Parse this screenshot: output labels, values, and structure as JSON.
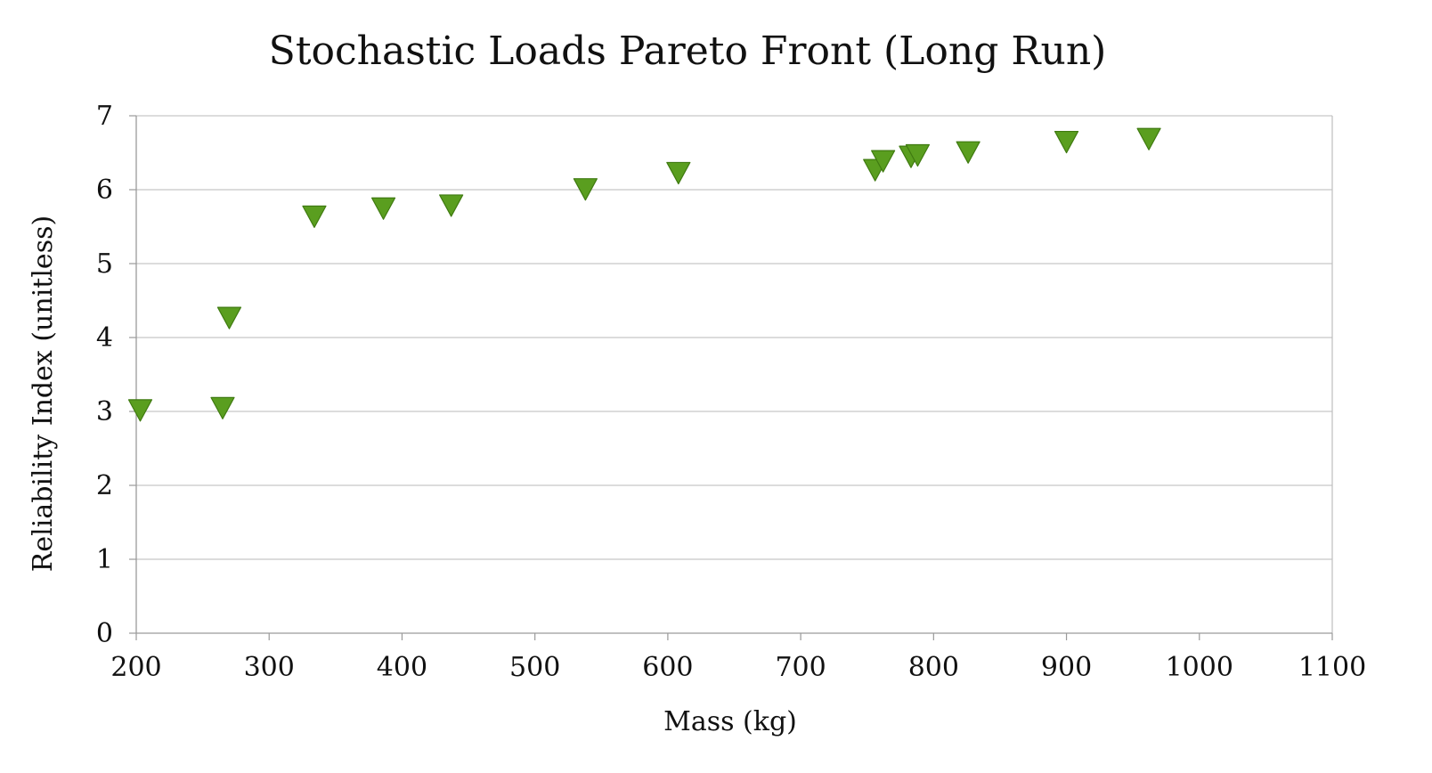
{
  "chart_data": {
    "type": "scatter",
    "title": "Stochastic Loads Pareto Front (Long Run)",
    "xlabel": "Mass (kg)",
    "ylabel": "Reliability Index (unitless)",
    "xlim": [
      200,
      1100
    ],
    "ylim": [
      0,
      7
    ],
    "x_ticks": [
      200,
      300,
      400,
      500,
      600,
      700,
      800,
      900,
      1000,
      1100
    ],
    "y_ticks": [
      0,
      1,
      2,
      3,
      4,
      5,
      6,
      7
    ],
    "grid": "horizontal",
    "legend": "none",
    "marker": "triangle-down",
    "series": [
      {
        "color": "#5a9e1f",
        "points": [
          {
            "x": 203,
            "y": 3.05
          },
          {
            "x": 265,
            "y": 3.08
          },
          {
            "x": 270,
            "y": 4.3
          },
          {
            "x": 334,
            "y": 5.67
          },
          {
            "x": 386,
            "y": 5.78
          },
          {
            "x": 437,
            "y": 5.82
          },
          {
            "x": 538,
            "y": 6.04
          },
          {
            "x": 608,
            "y": 6.26
          },
          {
            "x": 756,
            "y": 6.3
          },
          {
            "x": 762,
            "y": 6.42
          },
          {
            "x": 783,
            "y": 6.48
          },
          {
            "x": 788,
            "y": 6.5
          },
          {
            "x": 826,
            "y": 6.54
          },
          {
            "x": 900,
            "y": 6.68
          },
          {
            "x": 962,
            "y": 6.72
          }
        ]
      }
    ]
  }
}
